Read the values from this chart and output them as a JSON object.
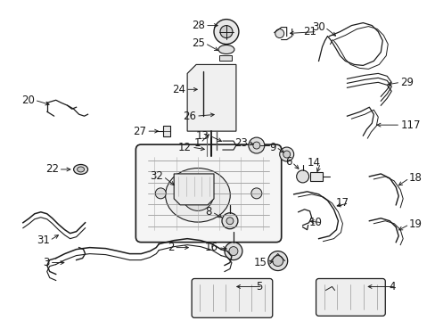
{
  "bg": "#ffffff",
  "lc": "#1a1a1a",
  "lw": 0.9,
  "font_size": 8.5,
  "label_color": "#111111",
  "figsize": [
    4.89,
    3.6
  ],
  "dpi": 100
}
